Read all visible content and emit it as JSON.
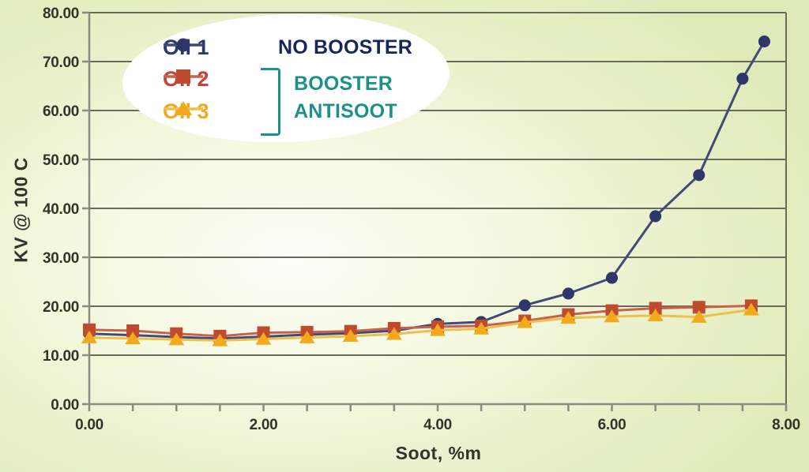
{
  "colors": {
    "background_base": "#e0eab8",
    "background_glow": "#fdfef8",
    "gridline": "#6a6a5c",
    "axis": "#8b8b80",
    "tick_text": "#33332c",
    "legend_ellipse": "#ffffff",
    "navy": "#16265c",
    "teal": "#1d9088"
  },
  "chart_data": {
    "type": "line",
    "title": "",
    "xlabel": "Soot, %m",
    "ylabel": "KV @ 100 C",
    "xlim": [
      0,
      8
    ],
    "ylim": [
      0,
      80
    ],
    "grid": "horizontal",
    "legend_position": "top-left",
    "x_minor_tick_step": 0.5,
    "x_ticks": [
      {
        "v": 0,
        "label": "0.00"
      },
      {
        "v": 2,
        "label": "2.00"
      },
      {
        "v": 4,
        "label": "4.00"
      },
      {
        "v": 6,
        "label": "6.00"
      },
      {
        "v": 8,
        "label": "8.00"
      }
    ],
    "y_ticks": [
      {
        "v": 0,
        "label": "0.00"
      },
      {
        "v": 10,
        "label": "10.00"
      },
      {
        "v": 20,
        "label": "20.00"
      },
      {
        "v": 30,
        "label": "30.00"
      },
      {
        "v": 40,
        "label": "40.00"
      },
      {
        "v": 50,
        "label": "50.00"
      },
      {
        "v": 60,
        "label": "60.00"
      },
      {
        "v": 70,
        "label": "70.00"
      },
      {
        "v": 80,
        "label": "80.00"
      }
    ],
    "series": [
      {
        "name": "Oil 1",
        "marker": "circle",
        "line_color": "#414a78",
        "marker_color": "#2f366a",
        "label_color": "#2c3a6e",
        "x": [
          0,
          0.5,
          1,
          1.5,
          2,
          2.5,
          3,
          3.5,
          4,
          4.5,
          5,
          5.5,
          6,
          6.5,
          7,
          7.5,
          7.75
        ],
        "y": [
          14.4,
          14.1,
          13.7,
          13.4,
          13.8,
          14.2,
          14.5,
          15.0,
          16.4,
          16.8,
          20.2,
          22.6,
          25.8,
          38.4,
          46.8,
          66.5,
          74.1
        ]
      },
      {
        "name": "Oil 2",
        "marker": "square",
        "line_color": "#c8604e",
        "marker_color": "#c04a2d",
        "label_color": "#c4443a",
        "x": [
          0,
          0.5,
          1,
          1.5,
          2,
          2.5,
          3,
          3.5,
          4,
          4.5,
          5,
          5.5,
          6,
          6.5,
          7,
          7.6
        ],
        "y": [
          15.2,
          15.0,
          14.4,
          13.9,
          14.6,
          14.7,
          14.9,
          15.5,
          15.8,
          16.0,
          17.0,
          18.3,
          19.1,
          19.6,
          19.8,
          20.1
        ]
      },
      {
        "name": "Oil 3",
        "marker": "triangle",
        "line_color": "#ecc04e",
        "marker_color": "#f2a91c",
        "label_color": "#f0a81e",
        "x": [
          0,
          0.5,
          1,
          1.5,
          2,
          2.5,
          3,
          3.5,
          4,
          4.5,
          5,
          5.5,
          6,
          6.5,
          7,
          7.6
        ],
        "y": [
          13.6,
          13.4,
          13.2,
          13.0,
          13.3,
          13.6,
          13.9,
          14.3,
          15.1,
          15.4,
          16.7,
          17.6,
          17.9,
          18.1,
          17.8,
          19.3
        ]
      }
    ],
    "legend": {
      "no_booster": "NO BOOSTER",
      "booster": "BOOSTER",
      "antisoot": "ANTISOOT"
    }
  }
}
